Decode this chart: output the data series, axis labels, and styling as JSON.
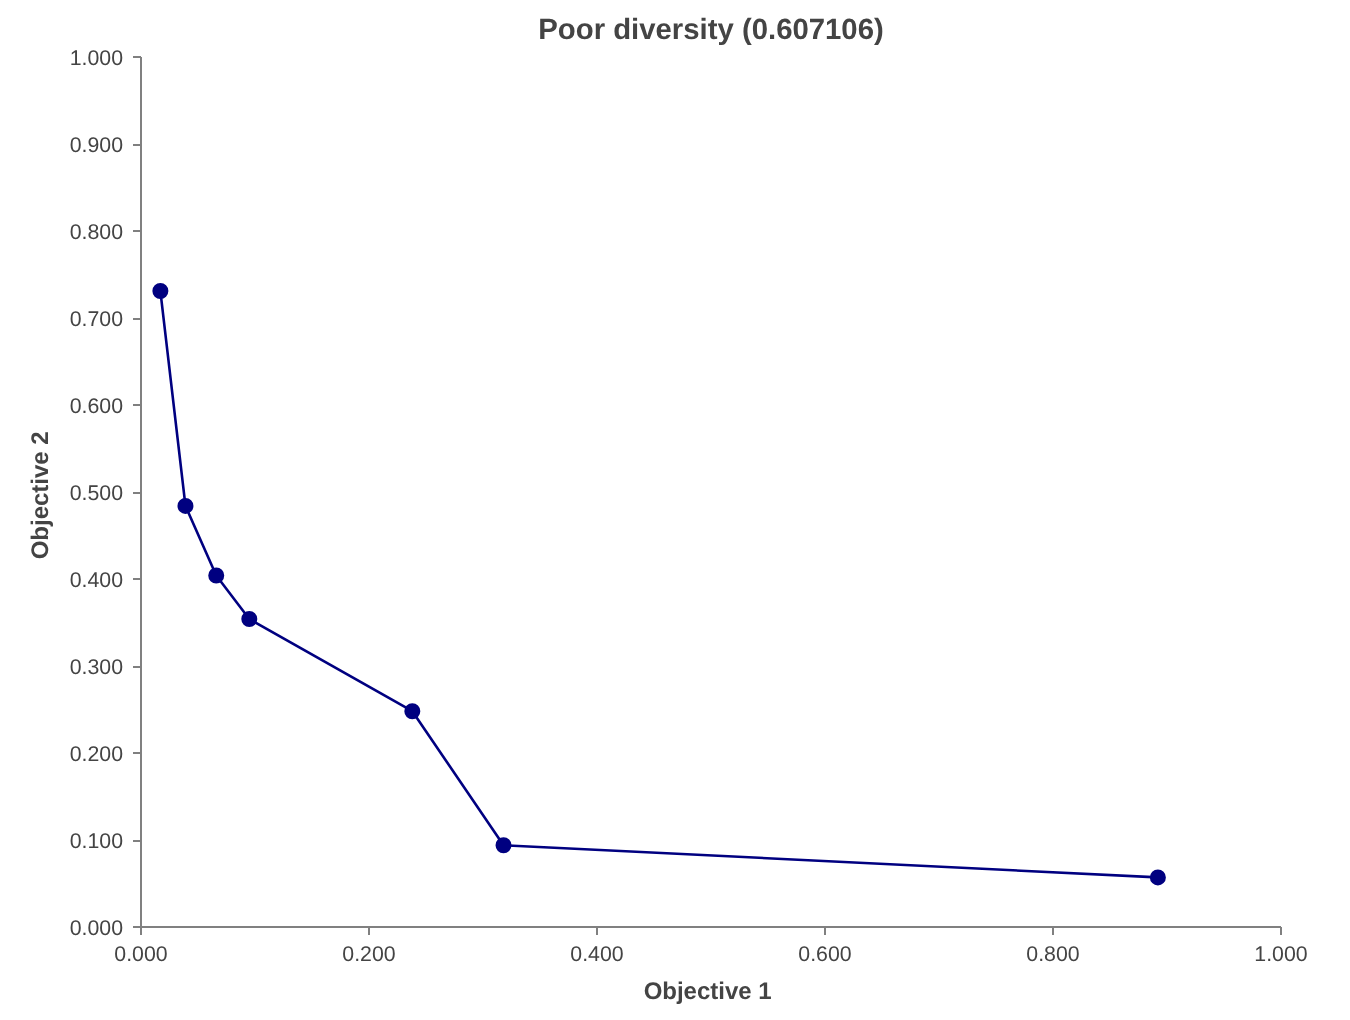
{
  "chart_data": {
    "type": "line",
    "title": "Poor diversity (0.607106)",
    "xlabel": "Objective  1",
    "ylabel": "Objective  2",
    "x": [
      0.017,
      0.039,
      0.066,
      0.095,
      0.238,
      0.318,
      0.892
    ],
    "series": [
      {
        "color": "#000080",
        "values": [
          0.731,
          0.484,
          0.404,
          0.354,
          0.248,
          0.094,
          0.057
        ]
      }
    ],
    "xlim": [
      0,
      1
    ],
    "ylim": [
      0,
      1
    ],
    "xticks": [
      {
        "value": 0,
        "label": "0.000"
      },
      {
        "value": 0.2,
        "label": "0.200"
      },
      {
        "value": 0.4,
        "label": "0.400"
      },
      {
        "value": 0.6,
        "label": "0.600"
      },
      {
        "value": 0.8,
        "label": "0.800"
      },
      {
        "value": 1,
        "label": "1.000"
      }
    ],
    "yticks": [
      {
        "value": 0,
        "label": "0.000"
      },
      {
        "value": 0.1,
        "label": "0.100"
      },
      {
        "value": 0.2,
        "label": "0.200"
      },
      {
        "value": 0.3,
        "label": "0.300"
      },
      {
        "value": 0.4,
        "label": "0.400"
      },
      {
        "value": 0.5,
        "label": "0.500"
      },
      {
        "value": 0.6,
        "label": "0.600"
      },
      {
        "value": 0.7,
        "label": "0.700"
      },
      {
        "value": 0.8,
        "label": "0.800"
      },
      {
        "value": 0.9,
        "label": "0.900"
      },
      {
        "value": 1,
        "label": "1.000"
      }
    ],
    "marker": "circle",
    "grid": false
  }
}
